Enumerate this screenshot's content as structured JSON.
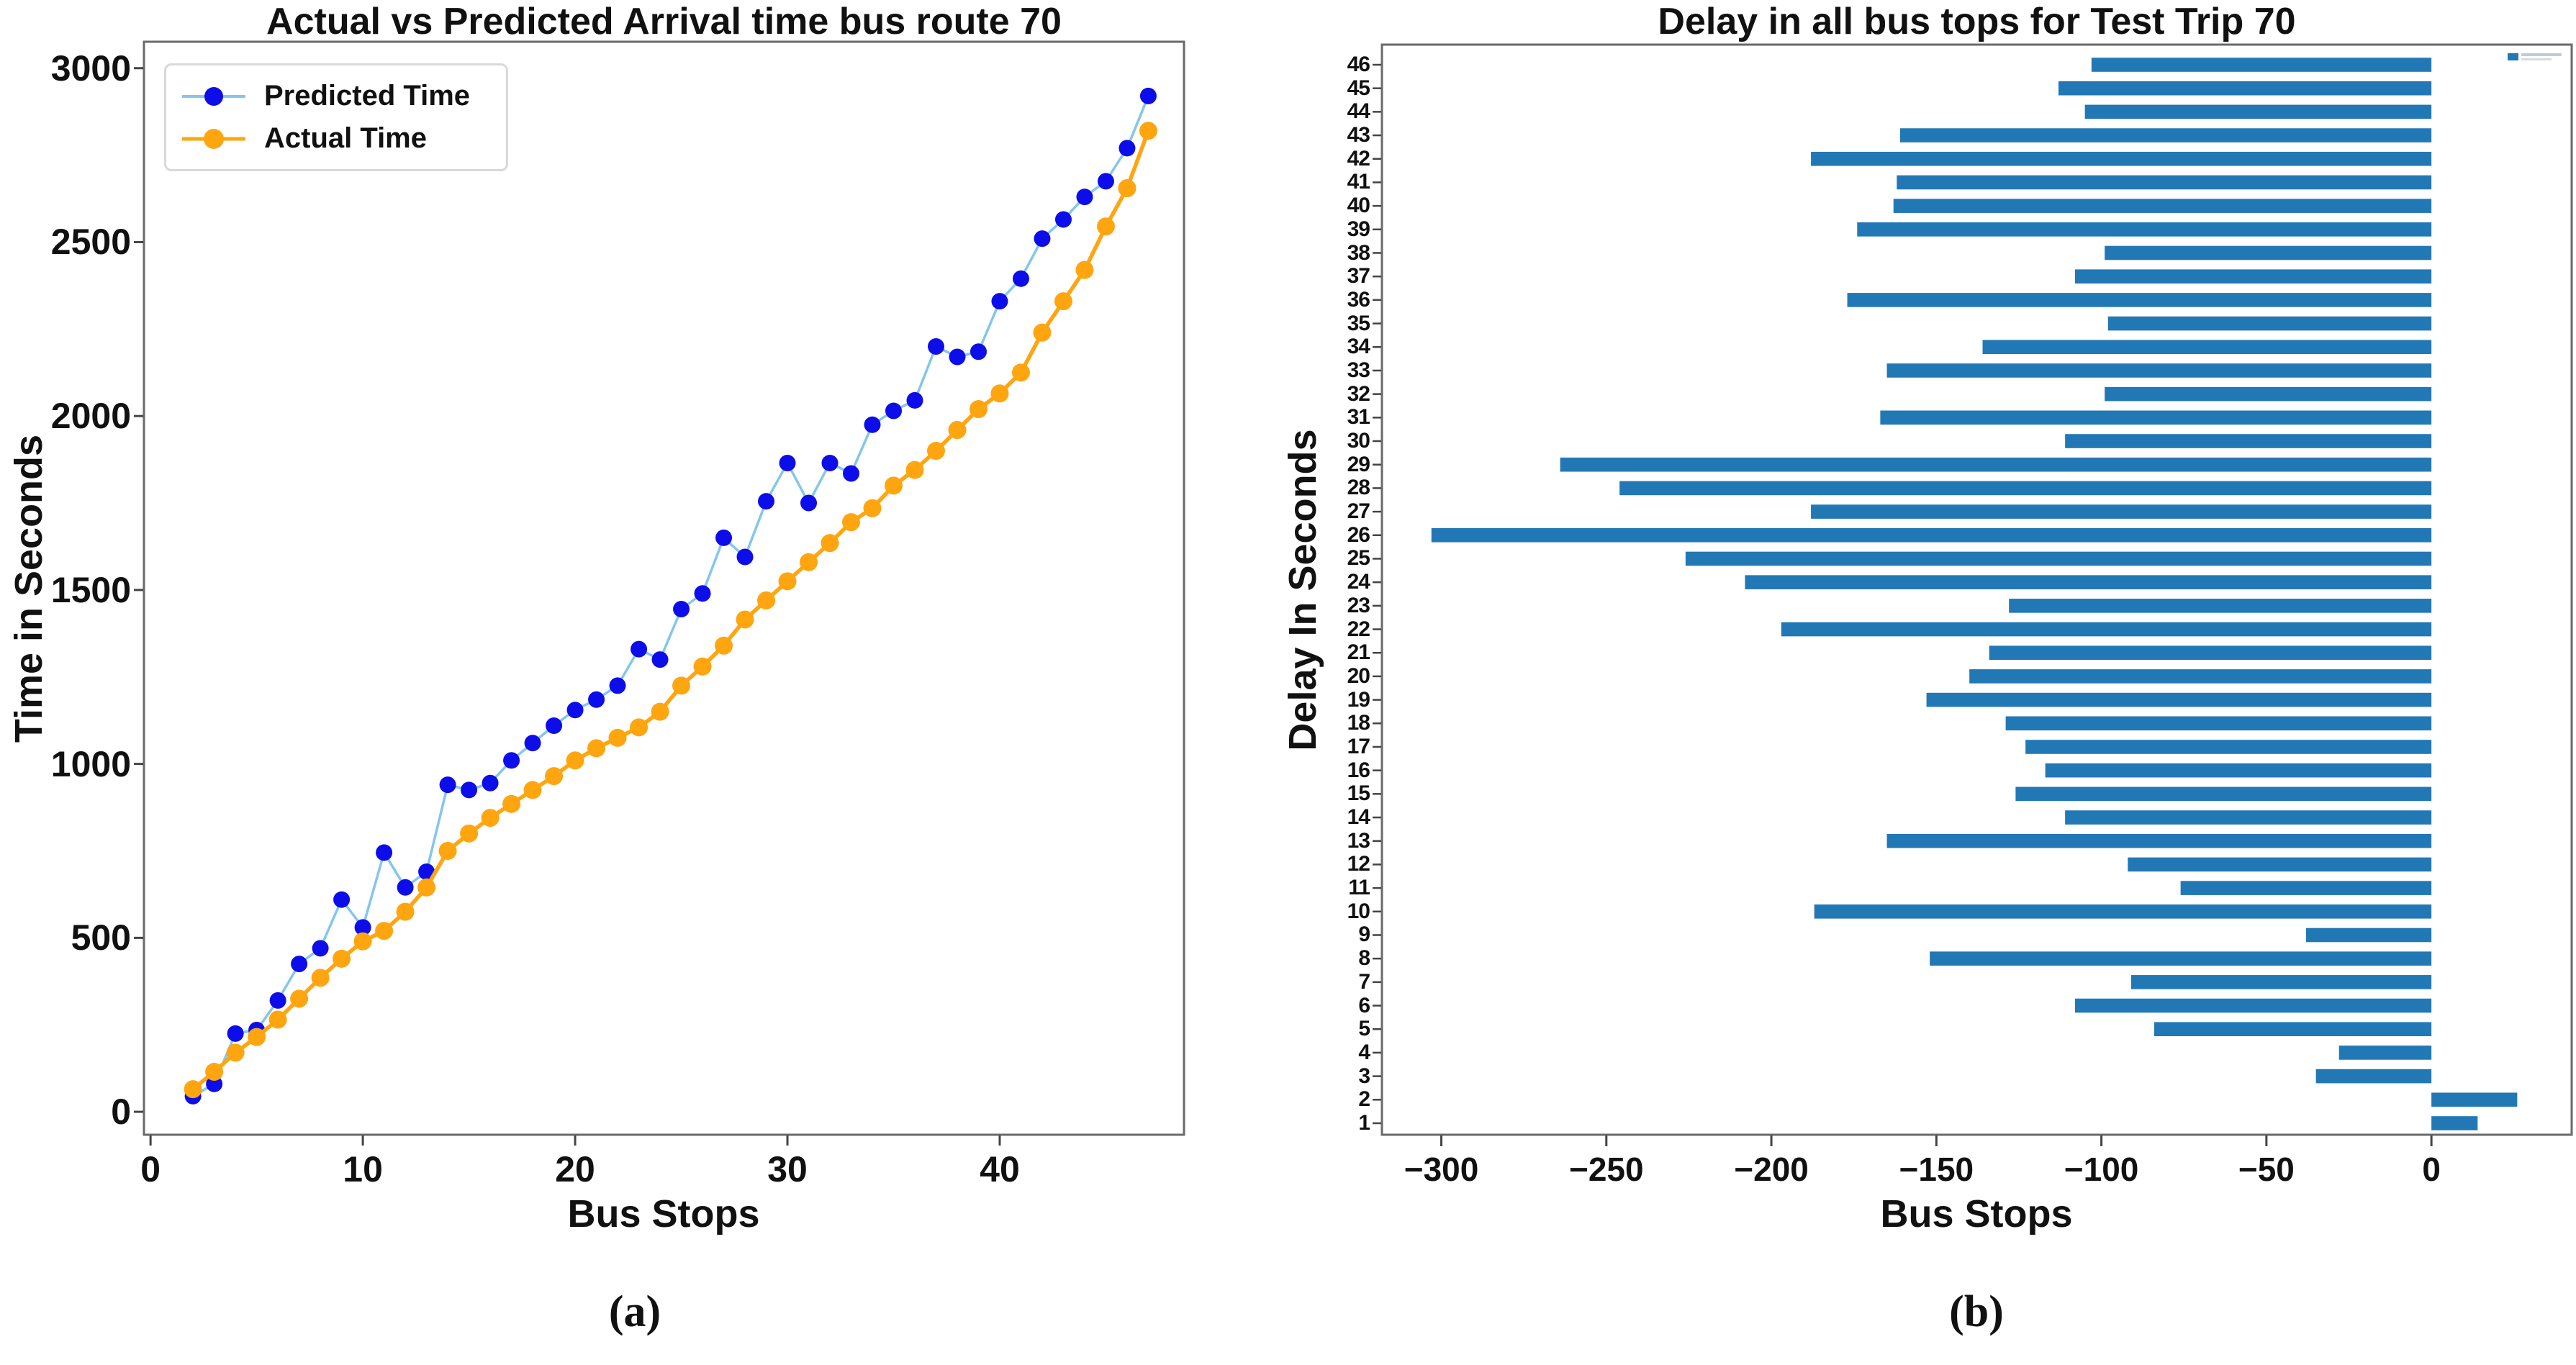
{
  "captions": {
    "a": "(a)",
    "b": "(b)"
  },
  "chart_data": [
    {
      "id": "arrival-comparison",
      "type": "line",
      "title": "Actual vs Predicted Arrival time bus route 70",
      "xlabel": "Bus Stops",
      "ylabel": "Time in Seconds",
      "xlim": [
        -0.31,
        48.68
      ],
      "ylim": [
        -66,
        3076
      ],
      "xticks": [
        0,
        10,
        20,
        30,
        40
      ],
      "yticks": [
        0,
        500,
        1000,
        1500,
        2000,
        2500,
        3000
      ],
      "grid": false,
      "legend_position": "upper left",
      "x": [
        2,
        3,
        4,
        5,
        6,
        7,
        8,
        9,
        10,
        11,
        12,
        13,
        14,
        15,
        16,
        17,
        18,
        19,
        20,
        21,
        22,
        23,
        24,
        25,
        26,
        27,
        28,
        29,
        30,
        31,
        32,
        33,
        34,
        35,
        36,
        37,
        38,
        39,
        40,
        41,
        42,
        43,
        44,
        45,
        46,
        47
      ],
      "series": [
        {
          "name": "Predicted Time",
          "line_color": "#85c6ea",
          "marker_color": "#0d0dea",
          "values": [
            45,
            80,
            225,
            235,
            320,
            425,
            470,
            610,
            530,
            745,
            645,
            690,
            940,
            925,
            945,
            1010,
            1060,
            1110,
            1155,
            1185,
            1225,
            1330,
            1300,
            1445,
            1490,
            1650,
            1595,
            1755,
            1865,
            1750,
            1865,
            1835,
            1975,
            2015,
            2045,
            2200,
            2170,
            2185,
            2330,
            2395,
            2510,
            2565,
            2630,
            2675,
            2770,
            2920
          ]
        },
        {
          "name": "Actual Time",
          "line_color": "#ffa510",
          "marker_color": "#ffa510",
          "values": [
            65,
            115,
            170,
            215,
            265,
            325,
            385,
            440,
            490,
            520,
            575,
            645,
            750,
            800,
            845,
            885,
            925,
            965,
            1010,
            1045,
            1075,
            1105,
            1150,
            1225,
            1280,
            1340,
            1415,
            1470,
            1525,
            1580,
            1635,
            1695,
            1735,
            1800,
            1845,
            1900,
            1960,
            2020,
            2065,
            2125,
            2240,
            2330,
            2420,
            2545,
            2655,
            2820
          ]
        }
      ]
    },
    {
      "id": "delay-per-stop",
      "type": "bar",
      "orientation": "horizontal",
      "title": "Delay in all bus tops for Test Trip 70",
      "xlabel": "Bus Stops",
      "ylabel": "Delay In Seconds",
      "bar_color": "#2278b5",
      "xlim": [
        -318,
        42.5
      ],
      "xticks": [
        -300,
        -250,
        -200,
        -150,
        -100,
        -50,
        0
      ],
      "xtick_labels": [
        "−300",
        "−250",
        "−200",
        "−150",
        "−100",
        "−50",
        "0"
      ],
      "grid": false,
      "categories": [
        1,
        2,
        3,
        4,
        5,
        6,
        7,
        8,
        9,
        10,
        11,
        12,
        13,
        14,
        15,
        16,
        17,
        18,
        19,
        20,
        21,
        22,
        23,
        24,
        25,
        26,
        27,
        28,
        29,
        30,
        31,
        32,
        33,
        34,
        35,
        36,
        37,
        38,
        39,
        40,
        41,
        42,
        43,
        44,
        45,
        46
      ],
      "values": [
        14,
        26,
        -35,
        -28,
        -84,
        -108,
        -91,
        -152,
        -38,
        -187,
        -76,
        -92,
        -165,
        -111,
        -126,
        -117,
        -123,
        -129,
        -153,
        -140,
        -134,
        -197,
        -128,
        -208,
        -226,
        -303,
        -188,
        -246,
        -264,
        -111,
        -167,
        -99,
        -165,
        -136,
        -98,
        -177,
        -108,
        -99,
        -174,
        -163,
        -162,
        -188,
        -161,
        -105,
        -113,
        -103
      ]
    }
  ]
}
